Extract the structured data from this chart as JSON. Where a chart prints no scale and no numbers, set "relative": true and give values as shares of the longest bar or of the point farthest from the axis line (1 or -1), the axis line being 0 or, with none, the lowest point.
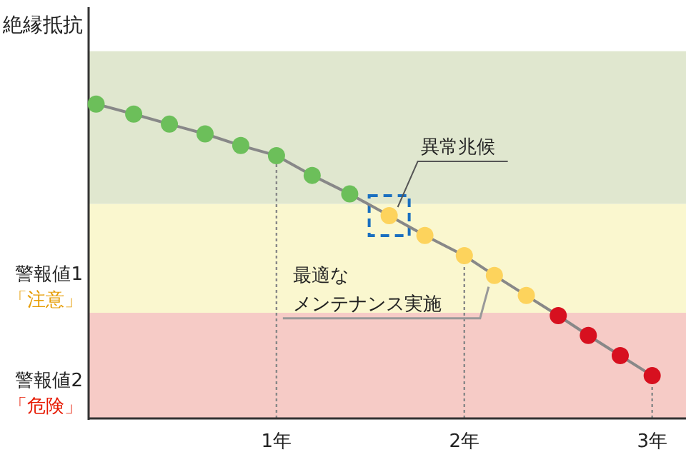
{
  "chart_data": {
    "type": "line",
    "ylabel": "絶縁抵抗",
    "relative": true,
    "tick_labels": "x",
    "marker": "circle",
    "line_style": "solid",
    "grid": false,
    "xlim": [
      0,
      3.18
    ],
    "xticks": [
      {
        "value": 1,
        "label": "1年"
      },
      {
        "value": 2,
        "label": "2年"
      },
      {
        "value": 3,
        "label": "3年"
      }
    ],
    "series": [
      {
        "color": "#888888",
        "x": [
          0.04,
          0.24,
          0.43,
          0.62,
          0.81,
          1.0,
          1.19,
          1.39,
          1.6,
          1.79,
          2.0,
          2.16,
          2.33,
          2.5,
          2.66,
          2.83,
          3.0
        ],
        "values": [
          1,
          0.968,
          0.936,
          0.905,
          0.868,
          0.836,
          0.773,
          0.714,
          0.645,
          0.582,
          0.518,
          0.455,
          0.391,
          0.327,
          0.264,
          0.2,
          0.136
        ],
        "colors": [
          "#6cbf5a",
          "#6cbf5a",
          "#6cbf5a",
          "#6cbf5a",
          "#6cbf5a",
          "#6cbf5a",
          "#6cbf5a",
          "#6cbf5a",
          "#fdd35c",
          "#fdd35c",
          "#fdd35c",
          "#fdd35c",
          "#fdd35c",
          "#d7101f",
          "#d7101f",
          "#d7101f",
          "#d7101f"
        ]
      }
    ],
    "bands": [
      {
        "axis": "y",
        "from": 0.682,
        "to": 1.168,
        "color": "#e0e7cf"
      },
      {
        "axis": "y",
        "from": 0.336,
        "to": 0.682,
        "color": "#faf7cf",
        "label": "警報値1「注意」"
      },
      {
        "axis": "y",
        "from": 0,
        "to": 0.336,
        "color": "#f6cbc6",
        "label": "警報値2「危険」"
      }
    ],
    "ref_lines": [
      {
        "axis": "x",
        "value": 1,
        "color": "#888888",
        "line_style": "dotted"
      },
      {
        "axis": "x",
        "value": 2,
        "color": "#888888",
        "line_style": "dotted"
      },
      {
        "axis": "x",
        "value": 3,
        "color": "#888888",
        "line_style": "dotted"
      }
    ],
    "annotations": [
      {
        "text": "異常兆候",
        "x": 1.6,
        "y": 0.645
      },
      {
        "text": "最適なメンテナンス実施",
        "x": 2.16,
        "y": 0.455
      }
    ]
  }
}
